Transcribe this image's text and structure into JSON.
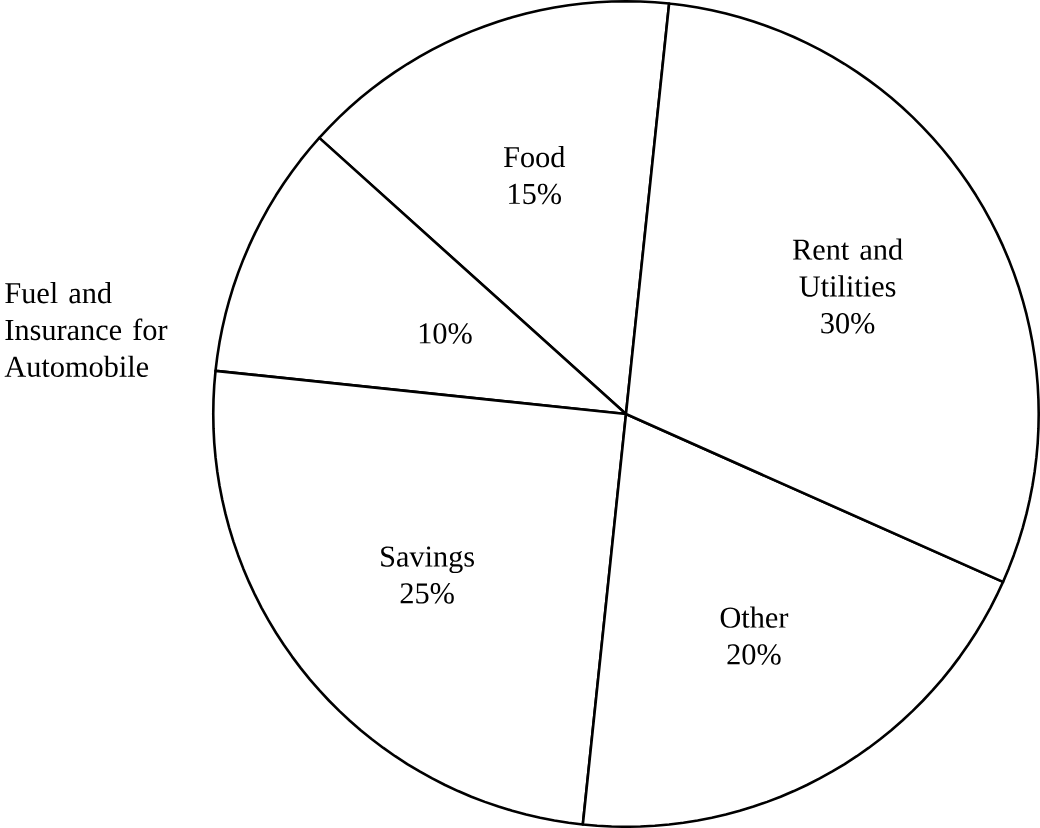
{
  "chart_data": {
    "type": "pie",
    "categories": [
      "Food",
      "Fuel and Insurance for Automobile",
      "Savings",
      "Other",
      "Rent and Utilities"
    ],
    "values": [
      15,
      10,
      25,
      20,
      30
    ],
    "value_labels": [
      "15%",
      "10%",
      "25%",
      "20%",
      "30%"
    ],
    "colors": [
      "#ffffff",
      "#ffffff",
      "#ffffff",
      "#ffffff",
      "#ffffff"
    ]
  }
}
